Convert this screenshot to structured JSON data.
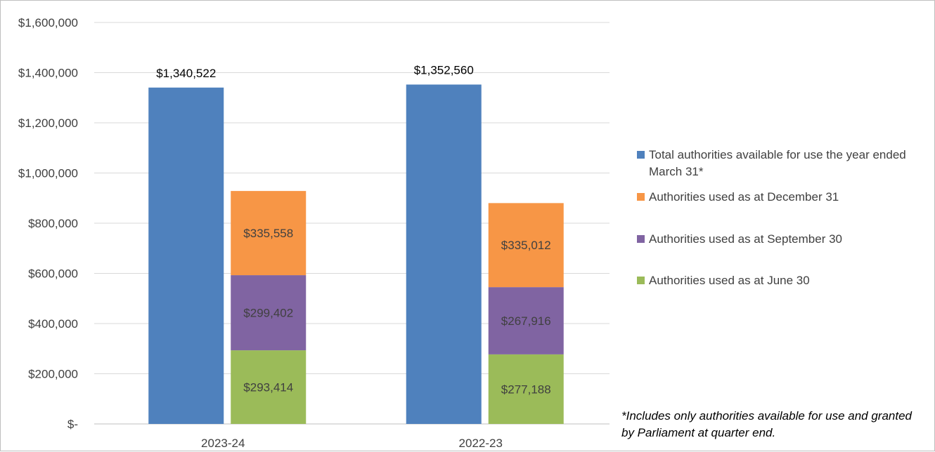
{
  "chart_data": {
    "type": "bar",
    "categories": [
      "2023-24",
      "2022-23"
    ],
    "y_ticks": [
      "$-",
      "$200,000",
      "$400,000",
      "$600,000",
      "$800,000",
      "$1,000,000",
      "$1,200,000",
      "$1,400,000",
      "$1,600,000"
    ],
    "ylim": [
      0,
      1600000
    ],
    "grid": true,
    "legend_position": "right",
    "series": [
      {
        "name": "Total authorities available for use the year ended March 31*",
        "stack": "total",
        "color": "#4f81bd",
        "values": [
          1340522,
          1352560
        ],
        "labels": [
          "$1,340,522",
          "$1,352,560"
        ]
      },
      {
        "name": "Authorities used as at June 30",
        "stack": "quarterly",
        "color": "#9bbb59",
        "values": [
          293414,
          277188
        ],
        "labels": [
          "$293,414",
          "$277,188"
        ]
      },
      {
        "name": "Authorities used as at September 30",
        "stack": "quarterly",
        "color": "#8064a2",
        "values": [
          299402,
          267916
        ],
        "labels": [
          "$299,402",
          "$267,916"
        ]
      },
      {
        "name": "Authorities used as at December 31",
        "stack": "quarterly",
        "color": "#f79646",
        "values": [
          335558,
          335012
        ],
        "labels": [
          "$335,558",
          "$335,012"
        ]
      }
    ]
  },
  "legend": {
    "items": [
      {
        "label": "Total authorities available for use the year ended March 31*",
        "color": "#4f81bd"
      },
      {
        "label": "Authorities used as at December 31",
        "color": "#f79646"
      },
      {
        "label": "Authorities used as at September 30",
        "color": "#8064a2"
      },
      {
        "label": "Authorities used as at June 30",
        "color": "#9bbb59"
      }
    ]
  },
  "footnote": "*Includes only authorities available for use and granted by Parliament at quarter end."
}
